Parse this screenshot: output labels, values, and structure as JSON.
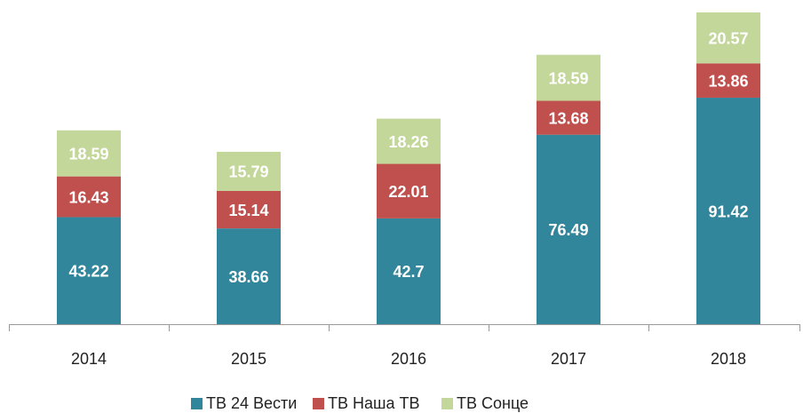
{
  "chart_data": {
    "type": "stacked_bar",
    "categories": [
      "2014",
      "2015",
      "2016",
      "2017",
      "2018"
    ],
    "series": [
      {
        "name": "ТВ 24 Вести",
        "color": "#31869b",
        "values": [
          43.22,
          38.66,
          42.7,
          76.49,
          91.42
        ]
      },
      {
        "name": "ТВ Наша ТВ",
        "color": "#c0504d",
        "values": [
          16.43,
          15.14,
          22.01,
          13.68,
          13.86
        ]
      },
      {
        "name": "ТВ Сонце",
        "color": "#c4d79b",
        "values": [
          18.59,
          15.79,
          18.26,
          18.59,
          20.57
        ]
      }
    ]
  }
}
